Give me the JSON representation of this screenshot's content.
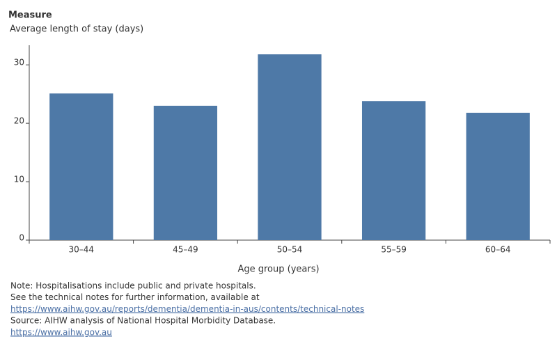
{
  "chart_data": {
    "type": "bar",
    "legend_title": "Measure",
    "measure": "Average length of stay (days)",
    "x_label": "Age group (years)",
    "categories": [
      "30–44",
      "45–49",
      "50–54",
      "55–59",
      "60–64"
    ],
    "values": [
      25.1,
      23.0,
      31.8,
      23.8,
      21.8
    ],
    "color": "#4e79a7",
    "ylim": [
      0,
      33
    ],
    "yticks": [
      0,
      10,
      20,
      30
    ],
    "grid": false,
    "notes": [
      {
        "text": "Note: Hospitalisations include public and private hospitals.",
        "link": false
      },
      {
        "text": "See the technical notes for further information, available at",
        "link": false
      },
      {
        "text": "https://www.aihw.gov.au/reports/dementia/dementia-in-aus/contents/technical-notes",
        "link": true
      },
      {
        "text": "Source:  AIHW analysis of National Hospital Morbidity Database.",
        "link": false
      },
      {
        "text": "https://www.aihw.gov.au",
        "link": true
      }
    ]
  }
}
